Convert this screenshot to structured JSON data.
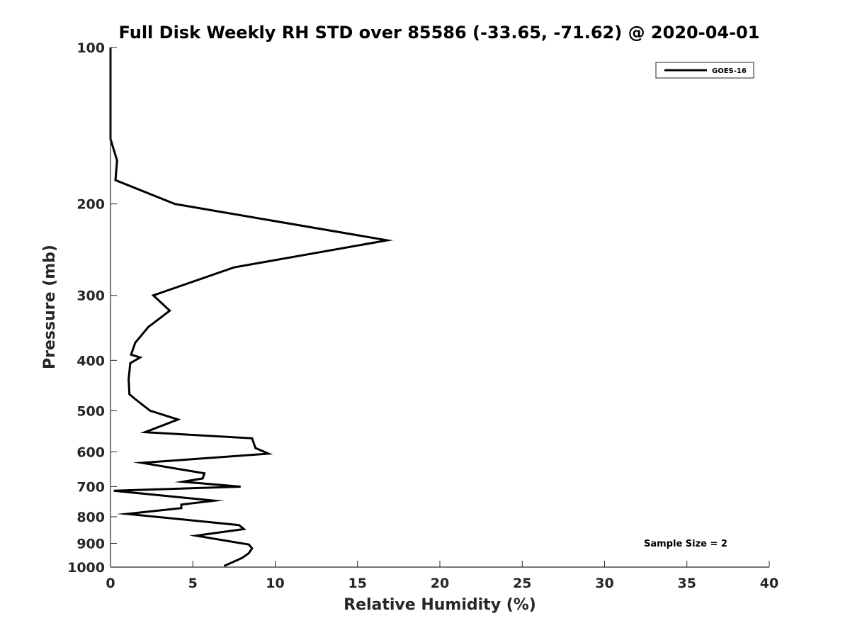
{
  "chart_data": {
    "type": "line",
    "title": "Full Disk Weekly RH STD over 85586 (-33.65, -71.62) @ 2020-04-01",
    "xlabel": "Relative Humidity (%)",
    "ylabel": "Pressure (mb)",
    "xlim": [
      0,
      40
    ],
    "ylim": [
      100,
      1000
    ],
    "yscale": "log",
    "y_reversed": true,
    "grid": false,
    "legend_position": "top-right",
    "x_ticks": [
      0,
      5,
      10,
      15,
      20,
      25,
      30,
      35,
      40
    ],
    "y_ticks": [
      100,
      200,
      300,
      400,
      500,
      600,
      700,
      800,
      900,
      1000
    ],
    "annotation": "Sample Size = 2",
    "series": [
      {
        "name": "GOES-16",
        "color": "#000000",
        "x": [
          0.0,
          0.0,
          0.4,
          0.3,
          3.9,
          16.8,
          7.5,
          2.6,
          3.6,
          2.3,
          1.5,
          1.25,
          1.8,
          1.2,
          1.1,
          1.15,
          1.5,
          2.4,
          4.1,
          2.1,
          8.6,
          8.8,
          9.6,
          1.9,
          5.7,
          5.6,
          4.4,
          7.9,
          0.2,
          6.3,
          4.3,
          4.3,
          1.0,
          7.8,
          8.1,
          5.2,
          8.4,
          8.6,
          8.4,
          8.0,
          6.9
        ],
        "y": [
          100,
          150,
          165,
          180,
          200,
          235,
          265,
          300,
          321,
          345,
          370,
          390,
          395,
          405,
          435,
          465,
          475,
          500,
          520,
          550,
          565,
          590,
          605,
          630,
          660,
          675,
          685,
          700,
          713,
          745,
          758,
          770,
          790,
          830,
          845,
          870,
          905,
          920,
          940,
          960,
          995
        ]
      }
    ]
  }
}
